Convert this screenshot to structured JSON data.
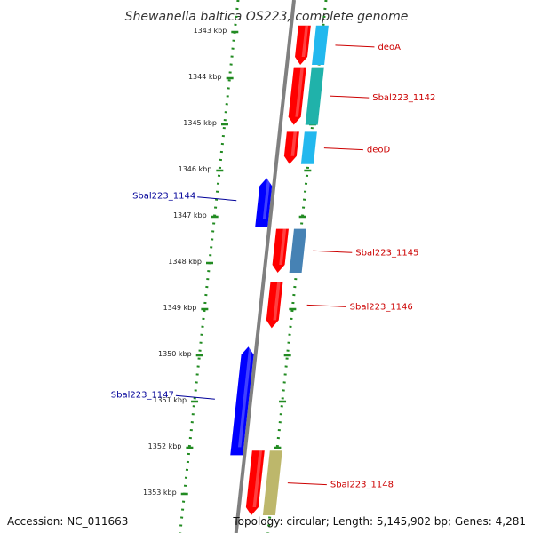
{
  "title": "Shewanella baltica OS223, complete genome",
  "accession": "Accession: NC_011663",
  "topology": "Topology: circular; Length: 5,145,902 bp; Genes: 4,281",
  "colors": {
    "forward_gene": "#ff0000",
    "reverse_gene": "#0000ff",
    "forward_label": "#cc0000",
    "reverse_label": "#000099",
    "backbone": "#808080",
    "tick": "#228b22",
    "annotation_cyan": "#22b8ee",
    "annotation_teal": "#20b2aa",
    "annotation_steel": "#4682b4",
    "annotation_khaki": "#bdb76b"
  },
  "ticks": [
    "1343 kbp",
    "1344 kbp",
    "1345 kbp",
    "1346 kbp",
    "1347 kbp",
    "1348 kbp",
    "1349 kbp",
    "1350 kbp",
    "1351 kbp",
    "1352 kbp",
    "1353 kbp"
  ],
  "genes": [
    {
      "label": "deoA",
      "strand": "+",
      "start_kbp": 1342.9,
      "end_kbp": 1343.75,
      "annotation": "annotation_cyan"
    },
    {
      "label": "Sbal223_1142",
      "strand": "+",
      "start_kbp": 1343.8,
      "end_kbp": 1345.05,
      "annotation": "annotation_teal"
    },
    {
      "label": "deoD",
      "strand": "+",
      "start_kbp": 1345.2,
      "end_kbp": 1345.9,
      "annotation": "annotation_cyan"
    },
    {
      "label": "Sbal223_1144",
      "strand": "-",
      "start_kbp": 1346.2,
      "end_kbp": 1347.25
    },
    {
      "label": "Sbal223_1145",
      "strand": "+",
      "start_kbp": 1347.3,
      "end_kbp": 1348.25,
      "annotation": "annotation_steel"
    },
    {
      "label": "Sbal223_1146",
      "strand": "+",
      "start_kbp": 1348.45,
      "end_kbp": 1349.45
    },
    {
      "label": "Sbal223_1147",
      "strand": "-",
      "start_kbp": 1349.85,
      "end_kbp": 1352.2
    },
    {
      "label": "Sbal223_1148",
      "strand": "+",
      "start_kbp": 1352.1,
      "end_kbp": 1353.5,
      "annotation": "annotation_khaki"
    }
  ]
}
